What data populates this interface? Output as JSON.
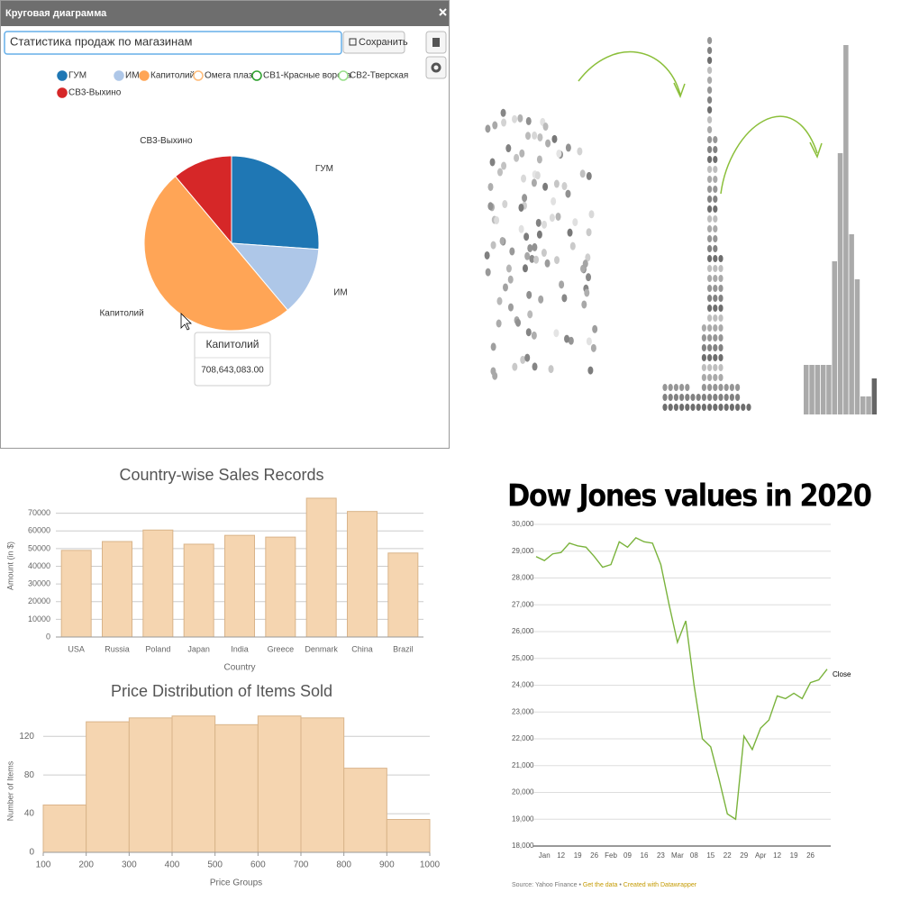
{
  "dialog": {
    "title": "Круговая диаграмма",
    "input": "Статистика продаж по магазинам",
    "save": "Сохранить"
  },
  "chart_data": [
    {
      "type": "pie",
      "categories": [
        "ГУМ",
        "ИМ",
        "Капитолий",
        "Омега плаза",
        "СВ1-Красные ворота",
        "СВ2-Тверская",
        "СВ3-Выхино"
      ],
      "values": [
        370069000,
        181100000,
        708643083,
        0,
        0,
        0,
        157476000
      ],
      "value_labels": [
        null,
        null,
        null,
        null,
        null,
        null,
        null
      ],
      "colors": [
        "#1f77b4",
        "#aec7e8",
        "#ffa556",
        "#ffbb78",
        "#2ca02c",
        "#98df8a",
        "#d62728"
      ],
      "tooltip": {
        "category": 2,
        "label": "708,643,083.00"
      }
    },
    {
      "type": "bar",
      "title": "Country-wise Sales Records",
      "xlabel": "Country",
      "ylabel": "Amount (in $)",
      "categories": [
        "USA",
        "Russia",
        "Poland",
        "Japan",
        "India",
        "Greece",
        "Denmark",
        "China",
        "Brazil"
      ],
      "values": [
        49000,
        54000,
        60500,
        52500,
        57500,
        56500,
        78500,
        71000,
        47500
      ],
      "color": "#f5d5b0",
      "ylim": [
        0,
        80000
      ],
      "yticks": [
        0,
        10000,
        20000,
        30000,
        40000,
        50000,
        60000,
        70000
      ],
      "grid": true
    },
    {
      "type": "histogram",
      "title": "Price Distribution of Items Sold",
      "xlabel": "Price Groups",
      "ylabel": "Number of Items",
      "bins": [
        100,
        200,
        300,
        400,
        500,
        600,
        700,
        800,
        900,
        1000
      ],
      "values": [
        49,
        135,
        139,
        141,
        132,
        141,
        139,
        87,
        34
      ],
      "color": "#f5d5b0",
      "xlim": [
        100,
        1000
      ],
      "ylim": [
        0,
        150
      ],
      "xticks": [
        100,
        200,
        300,
        400,
        500,
        600,
        700,
        800,
        900,
        1000
      ],
      "yticks": [
        0,
        40,
        80,
        120
      ],
      "grid": true
    },
    {
      "type": "line",
      "title": "Dow Jones values in 2020",
      "categories": [
        null,
        "Jan",
        null,
        "12",
        null,
        "19",
        null,
        "26",
        null,
        "Feb",
        null,
        "09",
        null,
        "16",
        null,
        "23",
        null,
        "Mar",
        null,
        "08",
        null,
        "15",
        null,
        "22",
        null,
        "29",
        null,
        "Apr",
        null,
        "12",
        null,
        "19",
        null,
        "26",
        null,
        null
      ],
      "series": [
        {
          "name": "Close",
          "color": "#7ab33c",
          "values": [
            28800,
            28650,
            28900,
            28950,
            29300,
            29200,
            29150,
            28800,
            28400,
            28500,
            29350,
            29150,
            29500,
            29350,
            29300,
            28500,
            27000,
            25600,
            26400,
            24000,
            22000,
            21700,
            20500,
            19200,
            19000,
            22100,
            21600,
            22400,
            22700,
            23600,
            23500,
            23700,
            23500,
            24100,
            24200,
            24600
          ]
        }
      ],
      "ylim": [
        18000,
        30000
      ],
      "yticks": [
        {
          "value": 18000,
          "label": "18,000"
        },
        {
          "value": 19000,
          "label": "19,000"
        },
        {
          "value": 20000,
          "label": "20,000"
        },
        {
          "value": 21000,
          "label": "21,000"
        },
        {
          "value": 22000,
          "label": "22,000"
        },
        {
          "value": 23000,
          "label": "23,000"
        },
        {
          "value": 24000,
          "label": "24,000"
        },
        {
          "value": 25000,
          "label": "25,000"
        },
        {
          "value": 26000,
          "label": "26,000"
        },
        {
          "value": 27000,
          "label": "27,000"
        },
        {
          "value": 28000,
          "label": "28,000"
        },
        {
          "value": 29000,
          "label": "29,000"
        },
        {
          "value": 30000,
          "label": "30,000"
        }
      ],
      "grid": true,
      "source": "Source: Yahoo Finance",
      "separator": "•",
      "links": [
        "Get the data",
        "Created with Datawrapper"
      ]
    }
  ]
}
